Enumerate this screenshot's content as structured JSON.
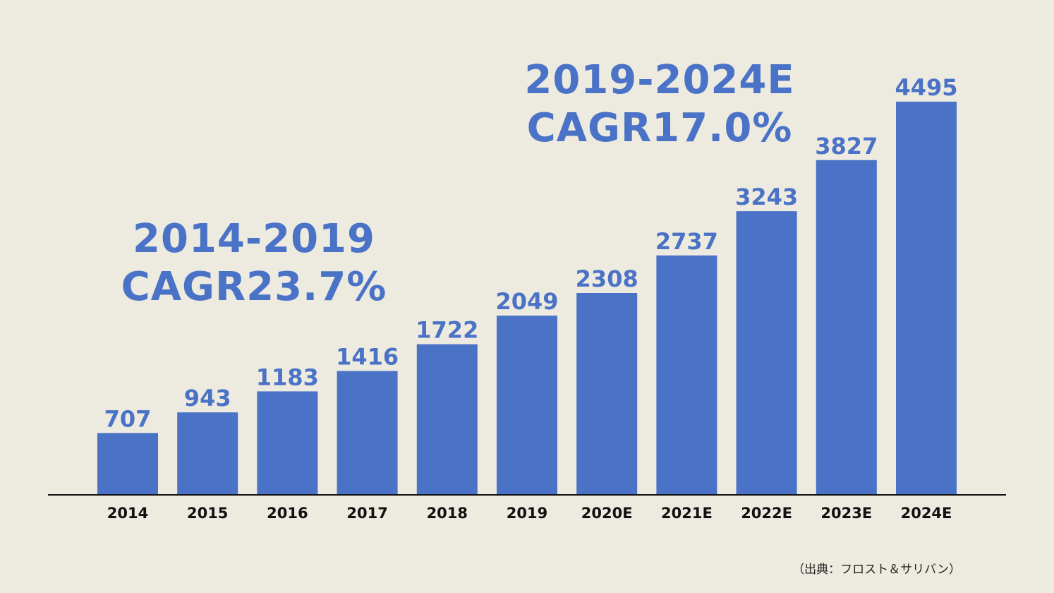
{
  "chart_data": {
    "type": "bar",
    "categories": [
      "2014",
      "2015",
      "2016",
      "2017",
      "2018",
      "2019",
      "2020E",
      "2021E",
      "2022E",
      "2023E",
      "2024E"
    ],
    "values": [
      707,
      943,
      1183,
      1416,
      1722,
      2049,
      2308,
      2737,
      3243,
      3827,
      4495
    ],
    "data_labels": [
      "707",
      "943",
      "1183",
      "1416",
      "1722",
      "2049",
      "2308",
      "2737",
      "3243",
      "3827",
      "4495"
    ],
    "title": "",
    "xlabel": "",
    "ylabel": "",
    "ylim": [
      0,
      5000
    ],
    "grid": false,
    "legend": "none",
    "bar_color": "#4a72c6",
    "annotations": [
      {
        "line1": "2014-2019",
        "line2": "CAGR23.7%"
      },
      {
        "line1": "2019-2024E",
        "line2": "CAGR17.0%"
      }
    ]
  },
  "colors": {
    "background": "#edeae0",
    "accent": "#4a72c6",
    "axis": "#111111",
    "tick_text": "#111111"
  },
  "source": "（出典：フロスト＆サリバン）"
}
